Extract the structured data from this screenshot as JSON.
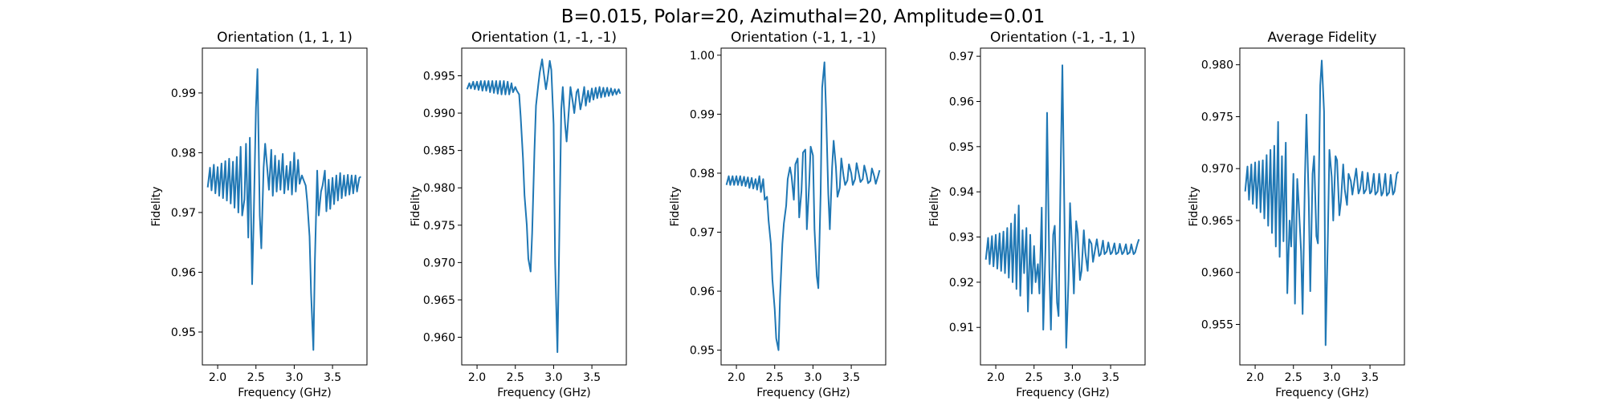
{
  "figure": {
    "suptitle": "B=0.015, Polar=20, Azimuthal=20, Amplitude=0.01",
    "line_color": "#1f77b4"
  },
  "chart_data": [
    {
      "type": "line",
      "title": "Orientation (1, 1, 1)",
      "xlabel": "Frequency (GHz)",
      "ylabel": "Fidelity",
      "xlim": [
        1.8,
        3.95
      ],
      "ylim": [
        0.9445,
        0.9975
      ],
      "xticks": [
        2.0,
        2.5,
        3.0,
        3.5
      ],
      "xtick_labels": [
        "2.0",
        "2.5",
        "3.0",
        "3.5"
      ],
      "yticks": [
        0.95,
        0.96,
        0.97,
        0.98,
        0.99
      ],
      "ytick_labels": [
        "0.95",
        "0.96",
        "0.97",
        "0.98",
        "0.99"
      ],
      "series": [
        {
          "x": [
            1.87,
            1.9,
            1.92,
            1.95,
            1.97,
            2.0,
            2.02,
            2.05,
            2.07,
            2.1,
            2.12,
            2.15,
            2.17,
            2.2,
            2.22,
            2.25,
            2.27,
            2.3,
            2.32,
            2.35,
            2.37,
            2.4,
            2.42,
            2.45,
            2.47,
            2.5,
            2.52,
            2.55,
            2.57,
            2.6,
            2.62,
            2.65,
            2.67,
            2.7,
            2.72,
            2.75,
            2.77,
            2.8,
            2.82,
            2.85,
            2.87,
            2.9,
            2.92,
            2.95,
            2.97,
            3.0,
            3.02,
            3.05,
            3.07,
            3.1,
            3.12,
            3.15,
            3.17,
            3.2,
            3.22,
            3.25,
            3.27,
            3.3,
            3.32,
            3.35,
            3.37,
            3.4,
            3.42,
            3.45,
            3.47,
            3.5,
            3.52,
            3.55,
            3.57,
            3.6,
            3.62,
            3.65,
            3.67,
            3.7,
            3.72,
            3.75,
            3.77,
            3.8,
            3.82,
            3.85,
            3.87
          ],
          "y": [
            0.9742,
            0.9775,
            0.9737,
            0.978,
            0.9732,
            0.9776,
            0.9728,
            0.9782,
            0.9724,
            0.9786,
            0.972,
            0.979,
            0.9715,
            0.9785,
            0.9708,
            0.9793,
            0.97,
            0.981,
            0.9695,
            0.9722,
            0.9815,
            0.9658,
            0.9825,
            0.958,
            0.9685,
            0.9875,
            0.994,
            0.9695,
            0.964,
            0.9775,
            0.9815,
            0.977,
            0.9738,
            0.9805,
            0.9728,
            0.9795,
            0.9735,
            0.9787,
            0.9738,
            0.9798,
            0.9732,
            0.9778,
            0.9738,
            0.9785,
            0.973,
            0.98,
            0.9735,
            0.9788,
            0.9748,
            0.9762,
            0.9755,
            0.9745,
            0.9718,
            0.966,
            0.9565,
            0.947,
            0.962,
            0.977,
            0.9695,
            0.9735,
            0.9745,
            0.977,
            0.9702,
            0.9755,
            0.9706,
            0.9758,
            0.9714,
            0.9762,
            0.972,
            0.9766,
            0.9724,
            0.9762,
            0.9728,
            0.9763,
            0.973,
            0.9762,
            0.9732,
            0.9762,
            0.9735,
            0.9758,
            0.976
          ]
        }
      ]
    },
    {
      "type": "line",
      "title": "Orientation (1, -1, -1)",
      "xlabel": "Frequency (GHz)",
      "ylabel": "Fidelity",
      "xlim": [
        1.8,
        3.95
      ],
      "ylim": [
        0.9563,
        0.9987
      ],
      "xticks": [
        2.0,
        2.5,
        3.0,
        3.5
      ],
      "xtick_labels": [
        "2.0",
        "2.5",
        "3.0",
        "3.5"
      ],
      "yticks": [
        0.96,
        0.965,
        0.97,
        0.975,
        0.98,
        0.985,
        0.99,
        0.995
      ],
      "ytick_labels": [
        "0.960",
        "0.965",
        "0.970",
        "0.975",
        "0.980",
        "0.985",
        "0.990",
        "0.995"
      ],
      "series": [
        {
          "x": [
            1.87,
            1.9,
            1.92,
            1.95,
            1.97,
            2.0,
            2.02,
            2.05,
            2.07,
            2.1,
            2.12,
            2.15,
            2.17,
            2.2,
            2.22,
            2.25,
            2.27,
            2.3,
            2.32,
            2.35,
            2.37,
            2.4,
            2.42,
            2.45,
            2.47,
            2.5,
            2.52,
            2.55,
            2.57,
            2.6,
            2.62,
            2.65,
            2.67,
            2.7,
            2.72,
            2.75,
            2.77,
            2.8,
            2.82,
            2.85,
            2.87,
            2.9,
            2.92,
            2.95,
            2.97,
            3.0,
            3.02,
            3.05,
            3.07,
            3.1,
            3.12,
            3.15,
            3.17,
            3.2,
            3.22,
            3.25,
            3.27,
            3.3,
            3.32,
            3.35,
            3.37,
            3.4,
            3.42,
            3.45,
            3.47,
            3.5,
            3.52,
            3.55,
            3.57,
            3.6,
            3.62,
            3.65,
            3.67,
            3.7,
            3.72,
            3.75,
            3.77,
            3.8,
            3.82,
            3.85,
            3.87
          ],
          "y": [
            0.9932,
            0.994,
            0.9933,
            0.9942,
            0.9932,
            0.9942,
            0.9931,
            0.9943,
            0.993,
            0.9943,
            0.993,
            0.9943,
            0.9928,
            0.9943,
            0.9927,
            0.9943,
            0.9926,
            0.9943,
            0.9925,
            0.9943,
            0.9925,
            0.9942,
            0.9925,
            0.994,
            0.9928,
            0.9935,
            0.993,
            0.9925,
            0.9895,
            0.984,
            0.979,
            0.975,
            0.9705,
            0.9688,
            0.974,
            0.985,
            0.991,
            0.9938,
            0.9955,
            0.9972,
            0.9955,
            0.9932,
            0.9945,
            0.997,
            0.9958,
            0.9885,
            0.97,
            0.958,
            0.9705,
            0.9905,
            0.9935,
            0.9885,
            0.9862,
            0.9905,
            0.9935,
            0.9915,
            0.99,
            0.9928,
            0.9932,
            0.9905,
            0.9915,
            0.9935,
            0.991,
            0.993,
            0.9915,
            0.9933,
            0.9918,
            0.9934,
            0.992,
            0.9935,
            0.9921,
            0.9934,
            0.9922,
            0.9934,
            0.9923,
            0.9933,
            0.9924,
            0.9932,
            0.9925,
            0.9932,
            0.9926
          ]
        }
      ]
    },
    {
      "type": "line",
      "title": "Orientation (-1, 1, -1)",
      "xlabel": "Frequency (GHz)",
      "ylabel": "Fidelity",
      "xlim": [
        1.8,
        3.95
      ],
      "ylim": [
        0.9475,
        1.0012
      ],
      "xticks": [
        2.0,
        2.5,
        3.0,
        3.5
      ],
      "xtick_labels": [
        "2.0",
        "2.5",
        "3.0",
        "3.5"
      ],
      "yticks": [
        0.95,
        0.96,
        0.97,
        0.98,
        0.99,
        1.0
      ],
      "ytick_labels": [
        "0.95",
        "0.96",
        "0.97",
        "0.98",
        "0.99",
        "1.00"
      ],
      "series": [
        {
          "x": [
            1.87,
            1.9,
            1.92,
            1.95,
            1.97,
            2.0,
            2.02,
            2.05,
            2.07,
            2.1,
            2.12,
            2.15,
            2.17,
            2.2,
            2.22,
            2.25,
            2.27,
            2.3,
            2.32,
            2.35,
            2.37,
            2.4,
            2.42,
            2.45,
            2.47,
            2.5,
            2.52,
            2.55,
            2.57,
            2.6,
            2.62,
            2.65,
            2.67,
            2.7,
            2.72,
            2.75,
            2.77,
            2.8,
            2.82,
            2.85,
            2.87,
            2.9,
            2.92,
            2.95,
            2.97,
            3.0,
            3.02,
            3.05,
            3.07,
            3.1,
            3.12,
            3.15,
            3.17,
            3.2,
            3.22,
            3.25,
            3.27,
            3.3,
            3.32,
            3.35,
            3.37,
            3.4,
            3.42,
            3.45,
            3.47,
            3.5,
            3.52,
            3.55,
            3.57,
            3.6,
            3.62,
            3.65,
            3.67,
            3.7,
            3.72,
            3.75,
            3.77,
            3.8,
            3.82,
            3.85,
            3.87
          ],
          "y": [
            0.978,
            0.9795,
            0.978,
            0.9795,
            0.978,
            0.9795,
            0.978,
            0.9795,
            0.9779,
            0.9794,
            0.9778,
            0.9793,
            0.9775,
            0.9792,
            0.9774,
            0.979,
            0.9772,
            0.9795,
            0.9768,
            0.979,
            0.9755,
            0.976,
            0.972,
            0.968,
            0.962,
            0.957,
            0.952,
            0.95,
            0.959,
            0.968,
            0.9715,
            0.9745,
            0.979,
            0.981,
            0.9795,
            0.9755,
            0.9815,
            0.9825,
            0.9725,
            0.977,
            0.9835,
            0.984,
            0.9705,
            0.978,
            0.9845,
            0.983,
            0.9705,
            0.9625,
            0.9605,
            0.9765,
            0.9945,
            0.9988,
            0.991,
            0.9765,
            0.9705,
            0.981,
            0.9855,
            0.981,
            0.976,
            0.9775,
            0.9825,
            0.9795,
            0.978,
            0.9788,
            0.9815,
            0.98,
            0.978,
            0.979,
            0.9817,
            0.9798,
            0.9785,
            0.979,
            0.9813,
            0.9797,
            0.9783,
            0.9787,
            0.9808,
            0.9795,
            0.9782,
            0.9795,
            0.9805
          ]
        }
      ]
    },
    {
      "type": "line",
      "title": "Orientation (-1, -1, 1)",
      "xlabel": "Frequency (GHz)",
      "ylabel": "Fidelity",
      "xlim": [
        1.8,
        3.95
      ],
      "ylim": [
        0.9017,
        0.9718
      ],
      "xticks": [
        2.0,
        2.5,
        3.0,
        3.5
      ],
      "xtick_labels": [
        "2.0",
        "2.5",
        "3.0",
        "3.5"
      ],
      "yticks": [
        0.91,
        0.92,
        0.93,
        0.94,
        0.95,
        0.96,
        0.97
      ],
      "ytick_labels": [
        "0.91",
        "0.92",
        "0.93",
        "0.94",
        "0.95",
        "0.96",
        "0.97"
      ],
      "series": [
        {
          "x": [
            1.87,
            1.9,
            1.92,
            1.95,
            1.97,
            2.0,
            2.02,
            2.05,
            2.07,
            2.1,
            2.12,
            2.15,
            2.17,
            2.2,
            2.22,
            2.25,
            2.27,
            2.3,
            2.32,
            2.35,
            2.37,
            2.4,
            2.42,
            2.45,
            2.47,
            2.5,
            2.52,
            2.55,
            2.57,
            2.6,
            2.62,
            2.65,
            2.67,
            2.7,
            2.72,
            2.75,
            2.77,
            2.8,
            2.82,
            2.85,
            2.87,
            2.9,
            2.92,
            2.95,
            2.97,
            3.0,
            3.02,
            3.05,
            3.07,
            3.1,
            3.12,
            3.15,
            3.17,
            3.2,
            3.22,
            3.25,
            3.27,
            3.3,
            3.32,
            3.35,
            3.37,
            3.4,
            3.42,
            3.45,
            3.47,
            3.5,
            3.52,
            3.55,
            3.57,
            3.6,
            3.62,
            3.65,
            3.67,
            3.7,
            3.72,
            3.75,
            3.77,
            3.8,
            3.82,
            3.85,
            3.87
          ],
          "y": [
            0.925,
            0.9298,
            0.924,
            0.9302,
            0.9235,
            0.9305,
            0.923,
            0.9308,
            0.9225,
            0.9312,
            0.922,
            0.932,
            0.921,
            0.933,
            0.92,
            0.935,
            0.9185,
            0.937,
            0.917,
            0.9315,
            0.922,
            0.932,
            0.9135,
            0.9305,
            0.9175,
            0.928,
            0.92,
            0.924,
            0.9175,
            0.9365,
            0.9095,
            0.928,
            0.9575,
            0.9225,
            0.9095,
            0.9305,
            0.9325,
            0.9155,
            0.9125,
            0.9475,
            0.968,
            0.9305,
            0.9055,
            0.9205,
            0.9375,
            0.9265,
            0.9175,
            0.9335,
            0.931,
            0.9205,
            0.9225,
            0.9315,
            0.9265,
            0.9225,
            0.9295,
            0.9285,
            0.9245,
            0.9275,
            0.9295,
            0.9258,
            0.9262,
            0.9292,
            0.9262,
            0.9268,
            0.9288,
            0.9262,
            0.9266,
            0.9286,
            0.9262,
            0.9266,
            0.9285,
            0.9262,
            0.9266,
            0.9284,
            0.9262,
            0.9266,
            0.9284,
            0.9262,
            0.9266,
            0.9285,
            0.9295
          ]
        }
      ]
    },
    {
      "type": "line",
      "title": "Average Fidelity",
      "xlabel": "Frequency (GHz)",
      "ylabel": "Fidelity",
      "xlim": [
        1.8,
        3.95
      ],
      "ylim": [
        0.9511,
        0.9816
      ],
      "xticks": [
        2.0,
        2.5,
        3.0,
        3.5
      ],
      "xtick_labels": [
        "2.0",
        "2.5",
        "3.0",
        "3.5"
      ],
      "yticks": [
        0.955,
        0.96,
        0.965,
        0.97,
        0.975,
        0.98
      ],
      "ytick_labels": [
        "0.955",
        "0.960",
        "0.965",
        "0.970",
        "0.975",
        "0.980"
      ],
      "series": [
        {
          "x": [
            1.87,
            1.9,
            1.92,
            1.95,
            1.97,
            2.0,
            2.02,
            2.05,
            2.07,
            2.1,
            2.12,
            2.15,
            2.17,
            2.2,
            2.22,
            2.25,
            2.27,
            2.3,
            2.32,
            2.35,
            2.37,
            2.4,
            2.42,
            2.45,
            2.47,
            2.5,
            2.52,
            2.55,
            2.57,
            2.6,
            2.62,
            2.65,
            2.67,
            2.7,
            2.72,
            2.75,
            2.77,
            2.8,
            2.82,
            2.85,
            2.87,
            2.9,
            2.92,
            2.95,
            2.97,
            3.0,
            3.02,
            3.05,
            3.07,
            3.1,
            3.12,
            3.15,
            3.17,
            3.2,
            3.22,
            3.25,
            3.27,
            3.3,
            3.32,
            3.35,
            3.37,
            3.4,
            3.42,
            3.45,
            3.47,
            3.5,
            3.52,
            3.55,
            3.57,
            3.6,
            3.62,
            3.65,
            3.67,
            3.7,
            3.72,
            3.75,
            3.77,
            3.8,
            3.82,
            3.85,
            3.87
          ],
          "y": [
            0.9678,
            0.9702,
            0.967,
            0.9704,
            0.9666,
            0.9706,
            0.9662,
            0.9707,
            0.9658,
            0.9708,
            0.9652,
            0.9713,
            0.9645,
            0.9718,
            0.9638,
            0.9722,
            0.9625,
            0.9745,
            0.9615,
            0.9712,
            0.963,
            0.9725,
            0.958,
            0.965,
            0.9625,
            0.9695,
            0.957,
            0.969,
            0.9665,
            0.962,
            0.956,
            0.969,
            0.9752,
            0.967,
            0.9582,
            0.9695,
            0.9712,
            0.9635,
            0.9628,
            0.978,
            0.9804,
            0.9755,
            0.953,
            0.9635,
            0.9718,
            0.9692,
            0.965,
            0.9712,
            0.9708,
            0.9655,
            0.9668,
            0.9704,
            0.968,
            0.9665,
            0.9695,
            0.9688,
            0.9675,
            0.969,
            0.97,
            0.9676,
            0.968,
            0.9697,
            0.9676,
            0.968,
            0.9696,
            0.9676,
            0.9678,
            0.9695,
            0.9675,
            0.9678,
            0.9695,
            0.9674,
            0.9677,
            0.9695,
            0.9674,
            0.9677,
            0.9694,
            0.9675,
            0.9678,
            0.9695,
            0.9697
          ]
        }
      ]
    }
  ]
}
